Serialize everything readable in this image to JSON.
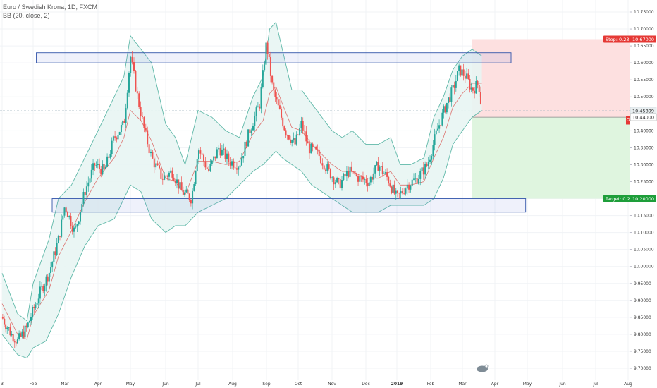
{
  "legend": {
    "line1": "Euro / Swedish Krona, 1D, FXCM",
    "line2": "BB (20, close, 2)"
  },
  "chart_data": {
    "type": "candlestick",
    "title": "Euro / Swedish Krona, 1D, FXCM",
    "indicator": "BB (20, close, 2)",
    "ylim": [
      9.7,
      10.75
    ],
    "y_ticks": [
      "10.75000",
      "10.70000",
      "10.65000",
      "10.60000",
      "10.55000",
      "10.50000",
      "10.45000",
      "10.40000",
      "10.35000",
      "10.30000",
      "10.25000",
      "10.20000",
      "10.15000",
      "10.10000",
      "10.05000",
      "10.00000",
      "9.95000",
      "9.90000",
      "9.85000",
      "9.80000",
      "9.75000",
      "9.70000"
    ],
    "x_ticks": [
      {
        "label": "3",
        "t": 0
      },
      {
        "label": "Feb",
        "t": 1
      },
      {
        "label": "Mar",
        "t": 2
      },
      {
        "label": "Apr",
        "t": 3
      },
      {
        "label": "May",
        "t": 4
      },
      {
        "label": "Jun",
        "t": 5
      },
      {
        "label": "Jul",
        "t": 6
      },
      {
        "label": "Aug",
        "t": 7
      },
      {
        "label": "Sep",
        "t": 8
      },
      {
        "label": "Oct",
        "t": 9
      },
      {
        "label": "Nov",
        "t": 10
      },
      {
        "label": "Dec",
        "t": 11
      },
      {
        "label": "2019",
        "t": 12,
        "bold": true
      },
      {
        "label": "Feb",
        "t": 13
      },
      {
        "label": "Mar",
        "t": 14
      },
      {
        "label": "Apr",
        "t": 15
      },
      {
        "label": "May",
        "t": 16
      },
      {
        "label": "Jun",
        "t": 17
      },
      {
        "label": "Jul",
        "t": 18
      },
      {
        "label": "Aug",
        "t": 19
      }
    ],
    "price_path": [
      [
        0.0,
        9.85
      ],
      [
        0.3,
        9.8
      ],
      [
        0.5,
        9.78
      ],
      [
        0.8,
        9.82
      ],
      [
        1.0,
        9.87
      ],
      [
        1.2,
        9.92
      ],
      [
        1.5,
        9.98
      ],
      [
        1.8,
        10.08
      ],
      [
        2.0,
        10.18
      ],
      [
        2.3,
        10.1
      ],
      [
        2.6,
        10.22
      ],
      [
        2.9,
        10.3
      ],
      [
        3.2,
        10.28
      ],
      [
        3.5,
        10.38
      ],
      [
        3.8,
        10.42
      ],
      [
        4.0,
        10.62
      ],
      [
        4.2,
        10.5
      ],
      [
        4.4,
        10.4
      ],
      [
        4.6,
        10.32
      ],
      [
        4.9,
        10.26
      ],
      [
        5.2,
        10.28
      ],
      [
        5.5,
        10.22
      ],
      [
        5.8,
        10.2
      ],
      [
        6.0,
        10.35
      ],
      [
        6.3,
        10.28
      ],
      [
        6.6,
        10.35
      ],
      [
        6.9,
        10.31
      ],
      [
        7.2,
        10.3
      ],
      [
        7.5,
        10.4
      ],
      [
        7.8,
        10.48
      ],
      [
        8.0,
        10.66
      ],
      [
        8.2,
        10.52
      ],
      [
        8.4,
        10.46
      ],
      [
        8.6,
        10.4
      ],
      [
        8.9,
        10.36
      ],
      [
        9.1,
        10.42
      ],
      [
        9.3,
        10.35
      ],
      [
        9.6,
        10.33
      ],
      [
        9.9,
        10.28
      ],
      [
        10.2,
        10.24
      ],
      [
        10.5,
        10.28
      ],
      [
        10.8,
        10.26
      ],
      [
        11.1,
        10.25
      ],
      [
        11.4,
        10.3
      ],
      [
        11.7,
        10.26
      ],
      [
        12.0,
        10.2
      ],
      [
        12.3,
        10.24
      ],
      [
        12.6,
        10.26
      ],
      [
        12.9,
        10.3
      ],
      [
        13.2,
        10.4
      ],
      [
        13.5,
        10.48
      ],
      [
        13.7,
        10.52
      ],
      [
        13.9,
        10.58
      ],
      [
        14.1,
        10.56
      ],
      [
        14.3,
        10.52
      ],
      [
        14.5,
        10.54
      ],
      [
        14.6,
        10.46
      ]
    ],
    "bb_upper": [
      [
        0.0,
        9.98
      ],
      [
        0.5,
        9.86
      ],
      [
        0.8,
        9.84
      ],
      [
        1.0,
        9.95
      ],
      [
        1.5,
        10.08
      ],
      [
        1.8,
        10.2
      ],
      [
        2.2,
        10.24
      ],
      [
        2.6,
        10.32
      ],
      [
        3.0,
        10.4
      ],
      [
        3.5,
        10.5
      ],
      [
        3.8,
        10.56
      ],
      [
        4.0,
        10.68
      ],
      [
        4.3,
        10.64
      ],
      [
        4.6,
        10.6
      ],
      [
        5.0,
        10.42
      ],
      [
        5.3,
        10.38
      ],
      [
        5.6,
        10.3
      ],
      [
        6.0,
        10.46
      ],
      [
        6.4,
        10.44
      ],
      [
        6.8,
        10.4
      ],
      [
        7.2,
        10.38
      ],
      [
        7.6,
        10.5
      ],
      [
        7.9,
        10.56
      ],
      [
        8.1,
        10.7
      ],
      [
        8.3,
        10.72
      ],
      [
        8.5,
        10.64
      ],
      [
        8.8,
        10.52
      ],
      [
        9.1,
        10.52
      ],
      [
        9.4,
        10.48
      ],
      [
        9.7,
        10.44
      ],
      [
        10.0,
        10.4
      ],
      [
        10.3,
        10.38
      ],
      [
        10.6,
        10.4
      ],
      [
        11.0,
        10.36
      ],
      [
        11.4,
        10.36
      ],
      [
        11.8,
        10.38
      ],
      [
        12.1,
        10.3
      ],
      [
        12.4,
        10.3
      ],
      [
        12.8,
        10.32
      ],
      [
        13.1,
        10.44
      ],
      [
        13.4,
        10.5
      ],
      [
        13.7,
        10.58
      ],
      [
        14.0,
        10.62
      ],
      [
        14.3,
        10.64
      ],
      [
        14.6,
        10.62
      ]
    ],
    "bb_lower": [
      [
        0.0,
        9.8
      ],
      [
        0.5,
        9.74
      ],
      [
        0.8,
        9.73
      ],
      [
        1.0,
        9.76
      ],
      [
        1.4,
        9.78
      ],
      [
        1.8,
        9.86
      ],
      [
        2.2,
        9.97
      ],
      [
        2.6,
        10.06
      ],
      [
        3.0,
        10.12
      ],
      [
        3.5,
        10.14
      ],
      [
        3.8,
        10.2
      ],
      [
        4.0,
        10.24
      ],
      [
        4.3,
        10.22
      ],
      [
        4.6,
        10.14
      ],
      [
        5.0,
        10.1
      ],
      [
        5.3,
        10.12
      ],
      [
        5.6,
        10.12
      ],
      [
        6.0,
        10.16
      ],
      [
        6.4,
        10.18
      ],
      [
        6.8,
        10.2
      ],
      [
        7.2,
        10.24
      ],
      [
        7.6,
        10.28
      ],
      [
        7.9,
        10.3
      ],
      [
        8.1,
        10.32
      ],
      [
        8.3,
        10.34
      ],
      [
        8.5,
        10.32
      ],
      [
        8.8,
        10.3
      ],
      [
        9.1,
        10.28
      ],
      [
        9.4,
        10.24
      ],
      [
        9.7,
        10.22
      ],
      [
        10.0,
        10.2
      ],
      [
        10.3,
        10.18
      ],
      [
        10.6,
        10.16
      ],
      [
        11.0,
        10.16
      ],
      [
        11.4,
        10.16
      ],
      [
        11.8,
        10.18
      ],
      [
        12.1,
        10.18
      ],
      [
        12.4,
        10.18
      ],
      [
        12.8,
        10.18
      ],
      [
        13.1,
        10.2
      ],
      [
        13.4,
        10.26
      ],
      [
        13.7,
        10.36
      ],
      [
        14.0,
        10.4
      ],
      [
        14.3,
        10.44
      ],
      [
        14.6,
        10.46
      ]
    ],
    "boxes": [
      {
        "t0": 1.1,
        "t1": 15.5,
        "y_top": 10.63,
        "y_bottom": 10.6
      },
      {
        "t0": 1.6,
        "t1": 15.95,
        "y_top": 10.2,
        "y_bottom": 10.16
      }
    ],
    "position": {
      "t0": 14.3,
      "entry": 10.44,
      "stop": 10.67,
      "target": 10.2
    },
    "price_tags": [
      {
        "text": "Stop: 0.23",
        "value": 10.67,
        "color": "#e53935",
        "kind": "stop"
      },
      {
        "text": "10.67000",
        "value": 10.67,
        "color": "#e53935",
        "kind": "axis"
      },
      {
        "text": "10.45899",
        "value": 10.459,
        "color": "#e8eef0",
        "kind": "axis-light"
      },
      {
        "text": "10.44000",
        "value": 10.44,
        "color": "#ffffff",
        "kind": "axis-white"
      },
      {
        "text": "O",
        "value": 10.435,
        "color": "#e53935",
        "kind": "open"
      },
      {
        "text": "Target: 0.2",
        "value": 10.2,
        "color": "#1e9e3a",
        "kind": "target"
      },
      {
        "text": "10.20000",
        "value": 10.2,
        "color": "#1e9e3a",
        "kind": "axis"
      }
    ],
    "colors": {
      "up": "#26a69a",
      "down": "#ef5350",
      "bb_band": "#5fb8a8",
      "bb_fill": "#e8f5f3",
      "basis": "#d9534f",
      "box": "#3355aa",
      "stop_zone": "#fde0e0",
      "target_zone": "#dff5df"
    }
  }
}
